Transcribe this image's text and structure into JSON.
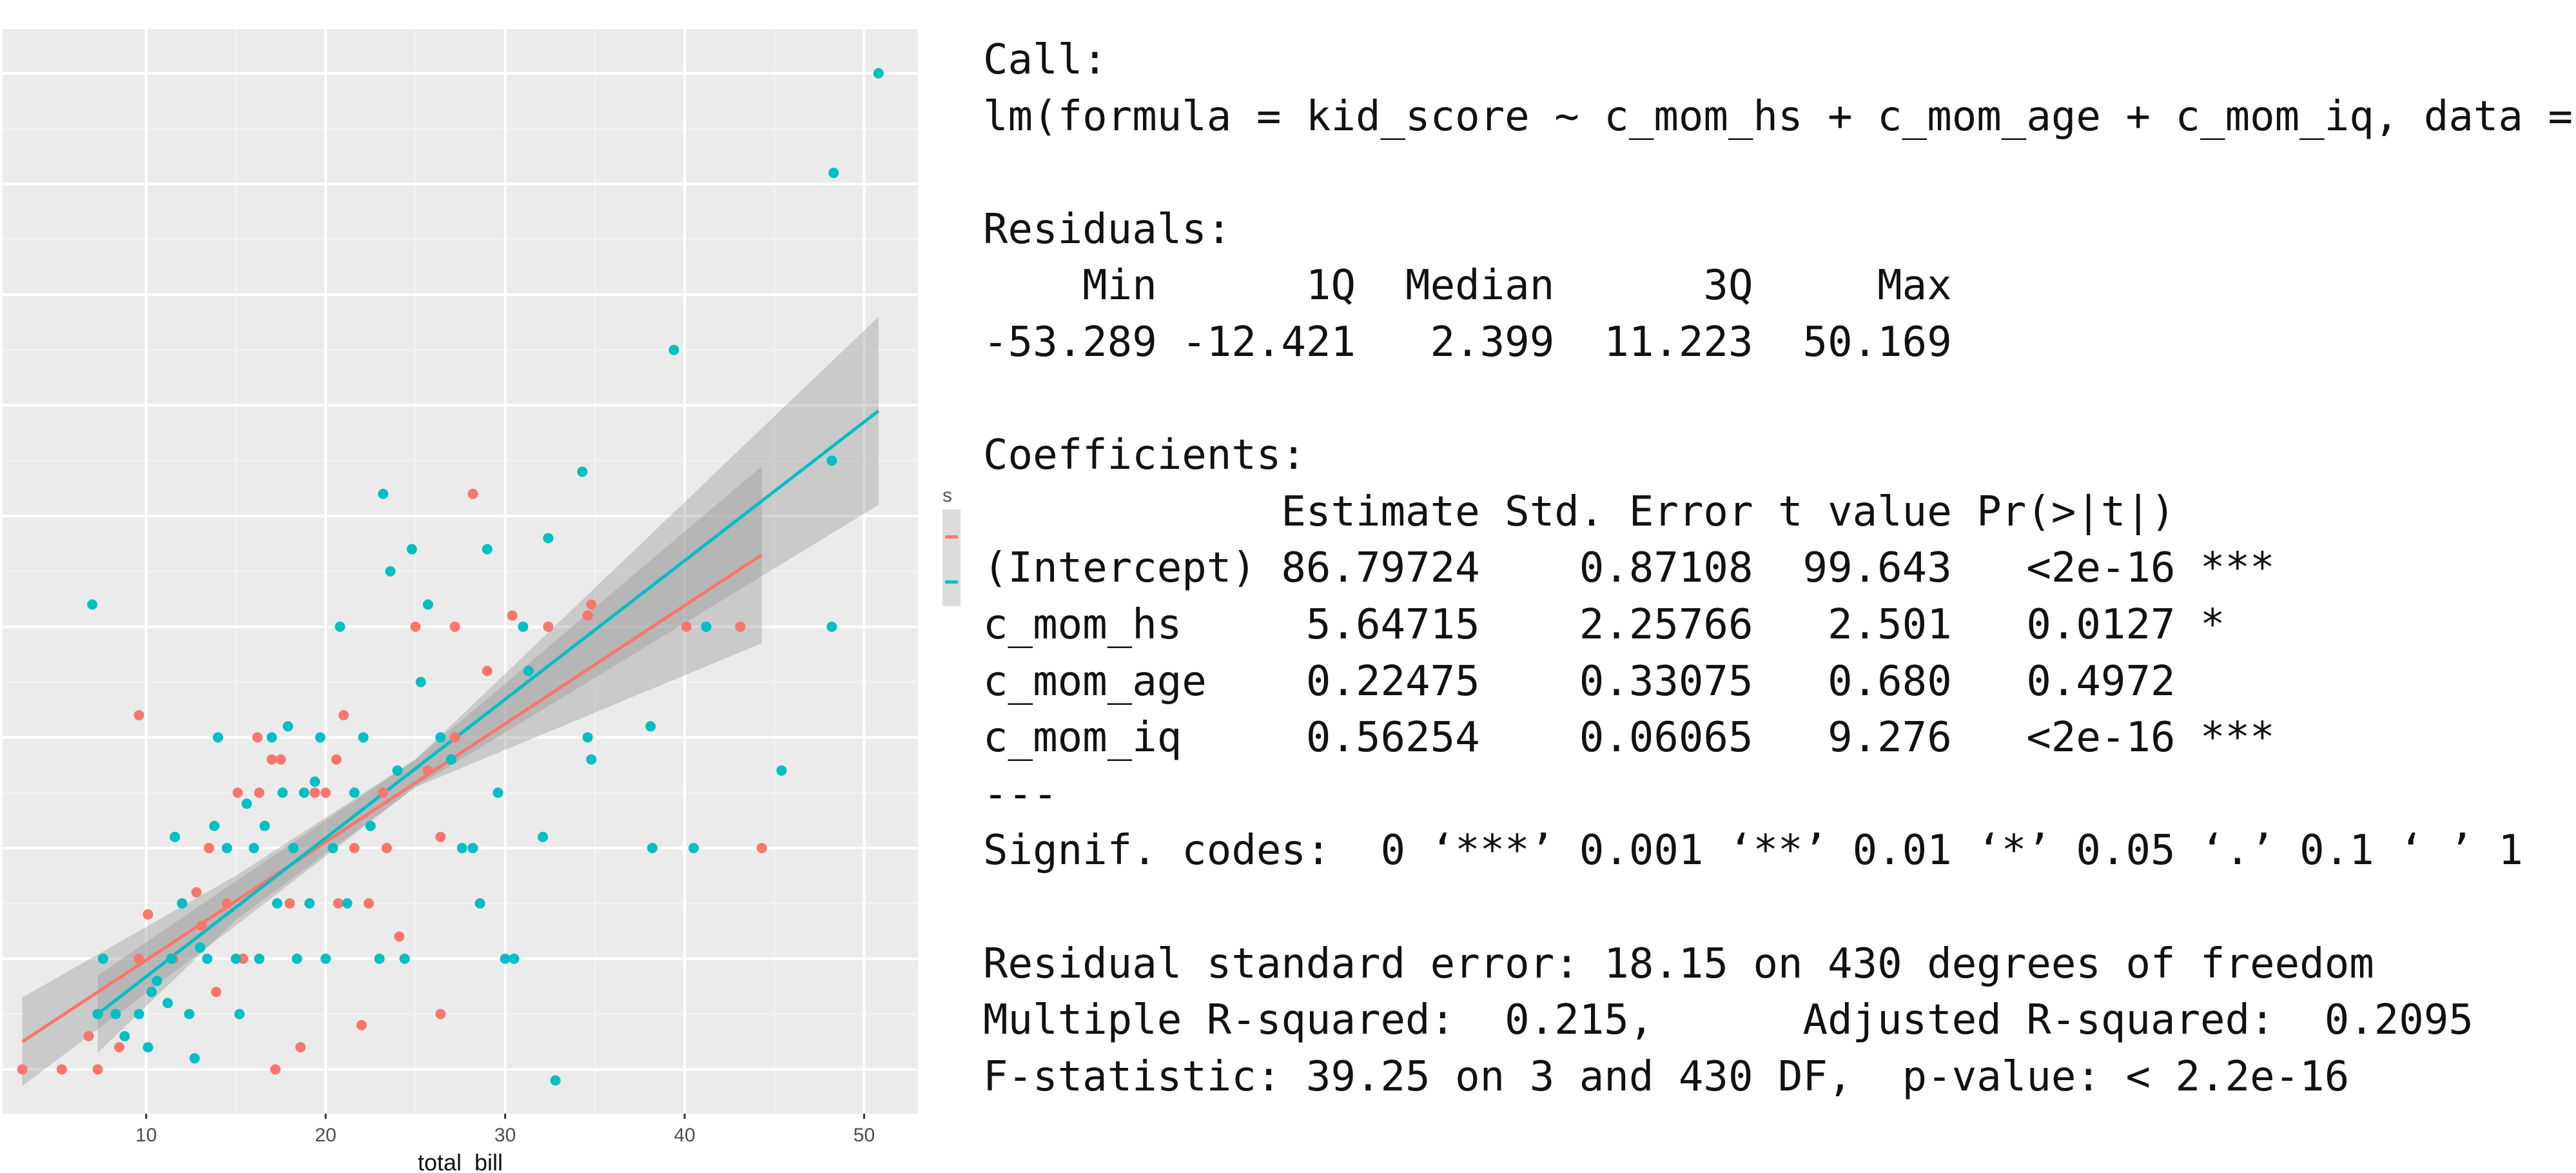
{
  "chart_data": {
    "type": "scatter",
    "xlabel": "total_bill",
    "ylabel": "",
    "xlim": [
      2,
      53
    ],
    "ylim": [
      0.6,
      10.4
    ],
    "x_ticks": [
      10,
      20,
      30,
      40,
      50
    ],
    "y_ticks": [
      1,
      2,
      3,
      4,
      5,
      6,
      7,
      8,
      9,
      10
    ],
    "show_y_tick_labels": false,
    "legend_title": "s",
    "grid": true,
    "background": "#ebebeb",
    "series": [
      {
        "color": "#f8766d",
        "points": [
          [
            3.1,
            1.0
          ],
          [
            5.3,
            1.0
          ],
          [
            7.3,
            1.0
          ],
          [
            6.8,
            1.3
          ],
          [
            8.5,
            1.2
          ],
          [
            9.6,
            2.0
          ],
          [
            10.1,
            2.4
          ],
          [
            9.6,
            4.2
          ],
          [
            11.5,
            2.0
          ],
          [
            13.1,
            2.3
          ],
          [
            12.8,
            2.6
          ],
          [
            13.5,
            3.0
          ],
          [
            13.9,
            1.7
          ],
          [
            14.5,
            2.5
          ],
          [
            15.1,
            3.5
          ],
          [
            15.4,
            2.0
          ],
          [
            16.3,
            3.5
          ],
          [
            16.2,
            4.0
          ],
          [
            17.0,
            3.8
          ],
          [
            17.5,
            3.8
          ],
          [
            17.2,
            1.0
          ],
          [
            18.0,
            2.5
          ],
          [
            18.2,
            3.0
          ],
          [
            18.6,
            1.2
          ],
          [
            19.4,
            3.5
          ],
          [
            20.0,
            3.5
          ],
          [
            20.6,
            3.8
          ],
          [
            20.7,
            2.5
          ],
          [
            21.0,
            4.2
          ],
          [
            21.6,
            3.0
          ],
          [
            22.0,
            1.4
          ],
          [
            22.4,
            2.5
          ],
          [
            23.2,
            3.5
          ],
          [
            23.4,
            3.0
          ],
          [
            24.1,
            2.2
          ],
          [
            25.0,
            5.0
          ],
          [
            25.7,
            3.7
          ],
          [
            26.4,
            3.1
          ],
          [
            26.4,
            1.5
          ],
          [
            27.2,
            4.0
          ],
          [
            27.2,
            5.0
          ],
          [
            28.2,
            6.2
          ],
          [
            29.0,
            4.6
          ],
          [
            30.4,
            5.1
          ],
          [
            32.4,
            5.0
          ],
          [
            34.8,
            5.2
          ],
          [
            34.6,
            5.1
          ],
          [
            40.1,
            5.0
          ],
          [
            43.1,
            5.0
          ],
          [
            44.3,
            3.0
          ]
        ]
      },
      {
        "color": "#00bfc4",
        "points": [
          [
            7.0,
            5.2
          ],
          [
            7.3,
            1.5
          ],
          [
            7.6,
            2.0
          ],
          [
            8.3,
            1.5
          ],
          [
            8.8,
            1.3
          ],
          [
            9.6,
            1.5
          ],
          [
            10.1,
            1.2
          ],
          [
            10.3,
            1.7
          ],
          [
            10.6,
            1.8
          ],
          [
            11.2,
            1.6
          ],
          [
            11.4,
            2.0
          ],
          [
            11.6,
            3.1
          ],
          [
            12.0,
            2.5
          ],
          [
            12.4,
            1.5
          ],
          [
            12.7,
            1.1
          ],
          [
            13.0,
            2.1
          ],
          [
            13.4,
            2.0
          ],
          [
            13.8,
            3.2
          ],
          [
            14.0,
            4.0
          ],
          [
            14.5,
            3.0
          ],
          [
            15.0,
            2.0
          ],
          [
            15.2,
            1.5
          ],
          [
            15.6,
            3.4
          ],
          [
            16.0,
            3.0
          ],
          [
            16.3,
            2.0
          ],
          [
            16.6,
            3.2
          ],
          [
            17.0,
            4.0
          ],
          [
            17.3,
            2.5
          ],
          [
            17.6,
            3.5
          ],
          [
            17.9,
            4.1
          ],
          [
            18.2,
            3.0
          ],
          [
            18.4,
            2.0
          ],
          [
            18.8,
            3.5
          ],
          [
            19.1,
            2.5
          ],
          [
            19.4,
            3.6
          ],
          [
            19.7,
            4.0
          ],
          [
            20.0,
            2.0
          ],
          [
            20.4,
            3.0
          ],
          [
            20.8,
            5.0
          ],
          [
            21.2,
            2.5
          ],
          [
            21.6,
            3.5
          ],
          [
            22.1,
            4.0
          ],
          [
            22.5,
            3.2
          ],
          [
            23.0,
            2.0
          ],
          [
            23.2,
            6.2
          ],
          [
            23.6,
            5.5
          ],
          [
            24.0,
            3.7
          ],
          [
            24.4,
            2.0
          ],
          [
            24.8,
            5.7
          ],
          [
            25.3,
            4.5
          ],
          [
            25.7,
            5.2
          ],
          [
            26.4,
            4.0
          ],
          [
            27.0,
            3.8
          ],
          [
            27.6,
            3.0
          ],
          [
            28.2,
            3.0
          ],
          [
            28.6,
            2.5
          ],
          [
            29.0,
            5.7
          ],
          [
            29.6,
            3.5
          ],
          [
            30.0,
            2.0
          ],
          [
            30.5,
            2.0
          ],
          [
            31.0,
            5.0
          ],
          [
            31.3,
            4.6
          ],
          [
            32.1,
            3.1
          ],
          [
            32.4,
            5.8
          ],
          [
            32.8,
            0.9
          ],
          [
            34.3,
            6.4
          ],
          [
            34.6,
            4.0
          ],
          [
            34.8,
            3.8
          ],
          [
            38.1,
            4.1
          ],
          [
            38.2,
            3.0
          ],
          [
            39.4,
            7.5
          ],
          [
            40.5,
            3.0
          ],
          [
            41.2,
            5.0
          ],
          [
            45.4,
            3.7
          ],
          [
            48.2,
            5.0
          ],
          [
            48.2,
            6.5
          ],
          [
            48.3,
            9.1
          ],
          [
            50.8,
            10.0
          ]
        ]
      }
    ],
    "fits": [
      {
        "color": "#f8766d",
        "from": [
          3.1,
          1.25
        ],
        "to": [
          44.3,
          5.65
        ],
        "band": [
          [
            3.1,
            0.85,
            1.65
          ],
          [
            15.0,
            2.3,
            2.75
          ],
          [
            25.0,
            3.55,
            3.8
          ],
          [
            44.3,
            4.85,
            6.45
          ]
        ]
      },
      {
        "color": "#00bfc4",
        "from": [
          7.3,
          1.5
        ],
        "to": [
          50.8,
          6.95
        ],
        "band": [
          [
            7.3,
            1.15,
            1.85
          ],
          [
            15.0,
            2.35,
            2.7
          ],
          [
            25.0,
            3.55,
            3.8
          ],
          [
            50.8,
            6.1,
            7.8
          ]
        ]
      }
    ]
  },
  "regression_output": {
    "lines": [
      "Call:",
      "lm(formula = kid_score ~ c_mom_hs + c_mom_age + c_mom_iq, data = d)",
      "",
      "Residuals:",
      "    Min      1Q  Median      3Q     Max ",
      "-53.289 -12.421   2.399  11.223  50.169 ",
      "",
      "Coefficients:",
      "            Estimate Std. Error t value Pr(>|t|)    ",
      "(Intercept) 86.79724    0.87108  99.643   <2e-16 ***",
      "c_mom_hs     5.64715    2.25766   2.501   0.0127 *  ",
      "c_mom_age    0.22475    0.33075   0.680   0.4972    ",
      "c_mom_iq     0.56254    0.06065   9.276   <2e-16 ***",
      "---",
      "Signif. codes:  0 ‘***’ 0.001 ‘**’ 0.01 ‘*’ 0.05 ‘.’ 0.1 ‘ ’ 1",
      "",
      "Residual standard error: 18.15 on 430 degrees of freedom",
      "Multiple R-squared:  0.215,\tAdjusted R-squared:  0.2095 ",
      "F-statistic: 39.25 on 3 and 430 DF,  p-value: < 2.2e-16"
    ]
  }
}
